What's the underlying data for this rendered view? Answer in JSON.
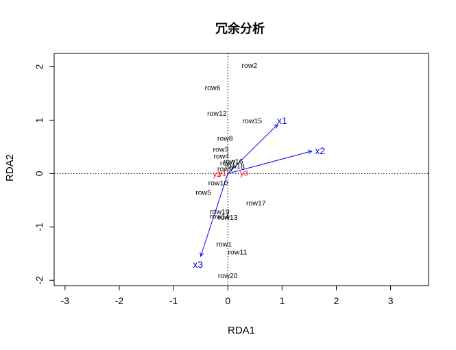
{
  "chart_data": {
    "type": "scatter",
    "title": "冗余分析",
    "xlabel": "RDA1",
    "ylabel": "RDA2",
    "xlim": [
      -3.2,
      3.7
    ],
    "ylim": [
      -2.1,
      2.25
    ],
    "x_ticks": [
      -3,
      -2,
      -1,
      0,
      1,
      2,
      3
    ],
    "y_ticks": [
      -2,
      -1,
      0,
      1,
      2
    ],
    "zero_lines": true,
    "sites": [
      {
        "label": "row2",
        "x": 0.4,
        "y": 2.02
      },
      {
        "label": "row6",
        "x": -0.28,
        "y": 1.6
      },
      {
        "label": "row12",
        "x": -0.2,
        "y": 1.12
      },
      {
        "label": "row15",
        "x": 0.45,
        "y": 0.98
      },
      {
        "label": "row8",
        "x": -0.05,
        "y": 0.65
      },
      {
        "label": "row3",
        "x": -0.13,
        "y": 0.45
      },
      {
        "label": "row4",
        "x": -0.12,
        "y": 0.32
      },
      {
        "label": "row16",
        "x": 0.1,
        "y": 0.22
      },
      {
        "label": "row7",
        "x": 0.0,
        "y": 0.19
      },
      {
        "label": "row18",
        "x": 0.13,
        "y": 0.13
      },
      {
        "label": "row9",
        "x": -0.05,
        "y": 0.08
      },
      {
        "label": "row10",
        "x": -0.18,
        "y": -0.18
      },
      {
        "label": "row5",
        "x": -0.45,
        "y": -0.36
      },
      {
        "label": "row17",
        "x": 0.52,
        "y": -0.56
      },
      {
        "label": "row19",
        "x": -0.15,
        "y": -0.72
      },
      {
        "label": "row14",
        "x": -0.15,
        "y": -0.81
      },
      {
        "label": "row13",
        "x": 0.0,
        "y": -0.83
      },
      {
        "label": "row1",
        "x": -0.07,
        "y": -1.33
      },
      {
        "label": "row11",
        "x": 0.18,
        "y": -1.48
      },
      {
        "label": "row20",
        "x": 0.0,
        "y": -1.92
      }
    ],
    "responses": [
      {
        "label": "y2",
        "x": -0.2,
        "y": -0.02
      },
      {
        "label": "y1",
        "x": -0.1,
        "y": 0.0
      },
      {
        "label": "y3",
        "x": 0.3,
        "y": 0.0
      }
    ],
    "env_vectors": [
      {
        "label": "x1",
        "x": 0.92,
        "y": 0.92,
        "lx": 1.0,
        "ly": 0.99
      },
      {
        "label": "x2",
        "x": 1.55,
        "y": 0.42,
        "lx": 1.7,
        "ly": 0.43
      },
      {
        "label": "x3",
        "x": -0.5,
        "y": -1.55,
        "lx": -0.55,
        "ly": -1.7
      }
    ],
    "colors": {
      "sites": "#000000",
      "responses": "#ff0000",
      "env_vectors": "#0000ff",
      "axes": "#000000"
    }
  }
}
